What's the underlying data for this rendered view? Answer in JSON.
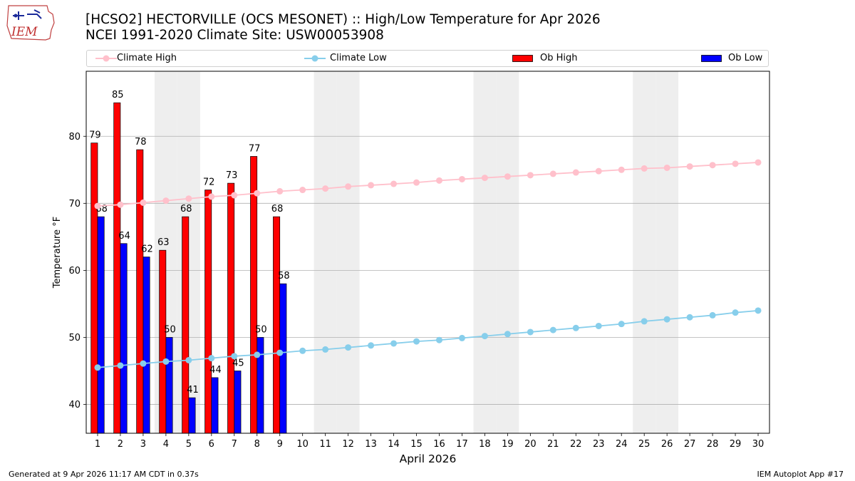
{
  "header": {
    "title_line1": "[HCSO2] HECTORVILLE (OCS MESONET) :: High/Low Temperature for Apr 2026",
    "title_line2": "NCEI 1991-2020 Climate Site: USW00053908"
  },
  "logo": {
    "text": "IEM"
  },
  "footer": {
    "left": "Generated at 9 Apr 2026 11:17 AM CDT in 0.37s",
    "right": "IEM Autoplot App #17"
  },
  "colors": {
    "climate_high": "#ffc0cb",
    "climate_low": "#87ceeb",
    "ob_high": "#ff0000",
    "ob_low": "#0000ff",
    "weekend_band": "#eeeeee",
    "grid": "#b0b0b0"
  },
  "chart_data": {
    "type": "bar",
    "xlabel": "April 2026",
    "ylabel": "Temperature °F",
    "xlim": [
      0.5,
      30.5
    ],
    "ylim": [
      35.7,
      89.7
    ],
    "yticks": [
      40,
      50,
      60,
      70,
      80
    ],
    "grid": true,
    "legend_position": "top",
    "days": [
      1,
      2,
      3,
      4,
      5,
      6,
      7,
      8,
      9,
      10,
      11,
      12,
      13,
      14,
      15,
      16,
      17,
      18,
      19,
      20,
      21,
      22,
      23,
      24,
      25,
      26,
      27,
      28,
      29,
      30
    ],
    "shaded_days": [
      4,
      5,
      11,
      12,
      18,
      19,
      25,
      26
    ],
    "legend": [
      "Climate High",
      "Climate Low",
      "Ob High",
      "Ob Low"
    ],
    "ob_high": [
      79,
      85,
      78,
      63,
      68,
      72,
      73,
      77,
      68
    ],
    "ob_low": [
      68,
      64,
      62,
      50,
      41,
      44,
      45,
      50,
      58
    ],
    "climate_high": [
      69.6,
      69.8,
      70.1,
      70.4,
      70.7,
      71.0,
      71.2,
      71.5,
      71.8,
      72.0,
      72.2,
      72.5,
      72.7,
      72.9,
      73.1,
      73.4,
      73.6,
      73.8,
      74.0,
      74.2,
      74.4,
      74.6,
      74.8,
      75.0,
      75.2,
      75.3,
      75.5,
      75.7,
      75.9,
      76.1
    ],
    "climate_low": [
      45.5,
      45.8,
      46.1,
      46.4,
      46.6,
      46.9,
      47.2,
      47.4,
      47.7,
      48.0,
      48.2,
      48.5,
      48.8,
      49.1,
      49.4,
      49.6,
      49.9,
      50.2,
      50.5,
      50.8,
      51.1,
      51.4,
      51.7,
      52.0,
      52.4,
      52.7,
      53.0,
      53.3,
      53.7,
      54.0
    ]
  }
}
